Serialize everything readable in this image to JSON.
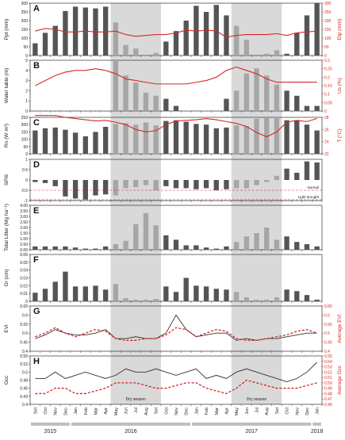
{
  "chart_data": {
    "type": "bar",
    "months": [
      "Set",
      "Oct",
      "Nov",
      "Dec",
      "Jan",
      "Feb",
      "Mar",
      "Apr",
      "May",
      "Jun",
      "Jul",
      "Aug",
      "Set",
      "Oct",
      "Nov",
      "Dec",
      "Jan",
      "Feb",
      "Mar",
      "Apr",
      "May",
      "Jun",
      "Jul",
      "Aug",
      "Set",
      "Oct",
      "Nov",
      "Dec",
      "Jan"
    ],
    "years": [
      {
        "label": "2015",
        "start": 0,
        "end": 3
      },
      {
        "label": "2016",
        "start": 4,
        "end": 15
      },
      {
        "label": "2017",
        "start": 16,
        "end": 27
      },
      {
        "label": "2018",
        "start": 28,
        "end": 28
      }
    ],
    "dry_seasons": [
      {
        "label": "Dry season",
        "start": 8,
        "end": 12
      },
      {
        "label": "Dry season",
        "start": 20,
        "end": 24
      }
    ],
    "colors": {
      "bar": "#555555",
      "bar_light": "#a6a6a6",
      "line": "#d62728",
      "shade": "#d9d9d9",
      "axis_right": "#d62728"
    },
    "panels": [
      {
        "letter": "A",
        "type": "bar+line",
        "ylabel": "Ppt (mm)",
        "ylim": [
          0,
          300
        ],
        "yticks": [
          "0",
          "50",
          "100",
          "150",
          "200",
          "250",
          "300"
        ],
        "y2label": "Etp (mm)",
        "y2lim": [
          0,
          300
        ],
        "y2ticks": [
          "0",
          "50",
          "100",
          "150",
          "200",
          "250",
          "300"
        ],
        "values": [
          70,
          130,
          170,
          255,
          280,
          275,
          270,
          280,
          190,
          60,
          40,
          5,
          15,
          80,
          140,
          200,
          285,
          250,
          290,
          230,
          170,
          90,
          5,
          10,
          30,
          10,
          130,
          230,
          300
        ],
        "line": [
          140,
          155,
          150,
          135,
          135,
          140,
          135,
          135,
          140,
          120,
          110,
          115,
          120,
          120,
          130,
          145,
          140,
          145,
          140,
          105,
          115,
          120,
          120,
          120,
          125,
          115,
          130,
          135,
          140
        ]
      },
      {
        "letter": "B",
        "type": "bar+line",
        "ylabel": "Water table (m)",
        "ylim": [
          0,
          5
        ],
        "yticks": [
          "0",
          "1",
          "2",
          "3",
          "4",
          "5"
        ],
        "y2label": "Us (%)",
        "y2lim": [
          0,
          0.3
        ],
        "y2ticks": [
          "0",
          "0.05",
          "0.1",
          "0.15",
          "0.2",
          "0.25",
          "0.3"
        ],
        "values": [
          0,
          0,
          0,
          0,
          0,
          0,
          0,
          0,
          5.0,
          3.5,
          2.8,
          1.8,
          1.5,
          1.2,
          0.5,
          0,
          0,
          0,
          0,
          1.2,
          2.0,
          3.7,
          4.2,
          3.5,
          2.6,
          2.0,
          1.5,
          0.5,
          0.5
        ],
        "line": [
          0.15,
          0.18,
          0.21,
          0.23,
          0.24,
          0.24,
          0.25,
          0.24,
          0.22,
          0.19,
          0.18,
          0.17,
          0.16,
          0.16,
          0.16,
          0.16,
          0.17,
          0.18,
          0.2,
          0.24,
          0.26,
          0.24,
          0.22,
          0.19,
          0.17,
          0.17,
          0.17,
          0.17,
          0.17
        ]
      },
      {
        "letter": "C",
        "type": "bar+line",
        "ylabel": "Rn (W m²)",
        "ylim": [
          0,
          250
        ],
        "yticks": [
          "0",
          "50",
          "100",
          "150",
          "200",
          "250"
        ],
        "y2label": "T (°C)",
        "y2lim": [
          22,
          28
        ],
        "y2ticks": [
          "22",
          "24",
          "26",
          "28"
        ],
        "values": [
          160,
          175,
          180,
          165,
          145,
          120,
          150,
          185,
          205,
          210,
          200,
          215,
          195,
          225,
          230,
          220,
          205,
          200,
          175,
          180,
          195,
          190,
          240,
          245,
          250,
          230,
          230,
          200,
          160
        ],
        "line": [
          28.3,
          28.3,
          28.3,
          28.0,
          27.8,
          27.6,
          27.4,
          27.5,
          27.2,
          26.8,
          26.0,
          25.6,
          25.8,
          26.8,
          27.4,
          27.5,
          27.6,
          27.8,
          27.6,
          27.3,
          27.0,
          26.5,
          25.5,
          24.8,
          25.6,
          27.2,
          27.5,
          27.3,
          27.8
        ]
      },
      {
        "letter": "D",
        "type": "bar",
        "ylabel": "SPI6",
        "ylim": [
          -1,
          1
        ],
        "yticks": [
          "-1",
          "-0.5",
          "0",
          "0.5",
          "1"
        ],
        "values": [
          -0.1,
          -0.15,
          -0.3,
          -0.8,
          -0.9,
          -0.95,
          -0.75,
          -0.7,
          -0.75,
          -0.4,
          -0.35,
          -0.25,
          -0.5,
          -0.3,
          -0.4,
          -0.4,
          -0.45,
          -0.4,
          -0.5,
          -0.45,
          -0.4,
          -0.4,
          -0.25,
          -0.1,
          0.2,
          0.55,
          0.35,
          0.9,
          0.85
        ],
        "ref_lines": [
          {
            "label": "Normal",
            "y": -0.5
          },
          {
            "label": "Light drought",
            "y": -1.0
          }
        ]
      },
      {
        "letter": "E",
        "type": "bar",
        "ylabel": "Total Litter (Mg ha⁻¹)",
        "ylim": [
          0,
          4
        ],
        "yticks": [
          "0.00",
          "0.50",
          "1.00",
          "1.50",
          "2.00",
          "2.50",
          "3.00",
          "3.50",
          "4.00"
        ],
        "values": [
          0.3,
          0.3,
          0.3,
          0.3,
          0.2,
          0.1,
          0.1,
          0.3,
          0.5,
          0.8,
          2.3,
          3.3,
          2.2,
          1.3,
          0.9,
          0.4,
          0.4,
          0.2,
          0.1,
          0.3,
          0.7,
          1.2,
          1.5,
          2.0,
          0.9,
          1.2,
          0.7,
          0.5,
          0.3
        ]
      },
      {
        "letter": "F",
        "type": "bar",
        "ylabel": "Gr (cm)",
        "ylim": [
          0,
          0.06
        ],
        "yticks": [
          "0",
          "0.01",
          "0.02",
          "0.03",
          "0.04",
          "0.05",
          "0.06"
        ],
        "values": [
          0.011,
          0.016,
          0.025,
          0.038,
          0.019,
          0.019,
          0.02,
          0.015,
          0.022,
          0.004,
          0.002,
          0.002,
          0.003,
          0.019,
          0.012,
          0.03,
          0.02,
          0.019,
          0.016,
          0.015,
          0.012,
          0.005,
          0.002,
          0.002,
          0.005,
          0.015,
          0.013,
          0.008,
          0.002
        ]
      },
      {
        "letter": "G",
        "type": "line",
        "ylabel": "EVI",
        "ylim": [
          0.4,
          0.65
        ],
        "yticks": [
          "0.4",
          "0.45",
          "0.5",
          "0.55",
          "0.6",
          "0.65"
        ],
        "y2label": "Average EVI",
        "y2lim": [
          0.4,
          0.65
        ],
        "y2ticks": [
          "0.4",
          "0.45",
          "0.5",
          "0.55",
          "0.6",
          "0.65"
        ],
        "series": [
          {
            "style": "solid",
            "color": "#333333",
            "values": [
              0.47,
              0.49,
              0.52,
              0.5,
              0.49,
              0.49,
              0.5,
              0.52,
              0.47,
              0.47,
              0.48,
              0.47,
              0.47,
              0.5,
              0.6,
              0.52,
              0.48,
              0.49,
              0.5,
              0.5,
              0.46,
              0.47,
              0.46,
              0.47,
              0.47,
              0.48,
              0.49,
              0.5,
              0.5
            ]
          },
          {
            "style": "dashed",
            "color": "#d62728",
            "values": [
              0.48,
              0.5,
              0.53,
              0.5,
              0.48,
              0.5,
              0.52,
              0.51,
              0.47,
              0.46,
              0.46,
              0.47,
              0.47,
              0.49,
              0.53,
              0.52,
              0.48,
              0.5,
              0.52,
              0.51,
              0.47,
              0.46,
              0.46,
              0.47,
              0.48,
              0.49,
              0.51,
              0.52,
              0.5
            ]
          }
        ]
      },
      {
        "letter": "H",
        "type": "line",
        "ylabel": "Gcc",
        "ylim": [
          0.4,
          0.55
        ],
        "yticks": [
          "0.4",
          "0.43",
          "0.45",
          "0.48",
          "0.5",
          "0.52",
          "0.55"
        ],
        "y2label": "Average Gcc",
        "y2lim": [
          0.46,
          0.55
        ],
        "y2ticks": [
          "0.46",
          "0.47",
          "0.48",
          "0.49",
          "0.50",
          "0.51",
          "0.52",
          "0.53",
          "0.54",
          "0.55"
        ],
        "series": [
          {
            "style": "solid",
            "color": "#333333",
            "values": [
              0.48,
              0.48,
              0.5,
              0.48,
              0.49,
              0.5,
              0.49,
              0.48,
              0.49,
              0.51,
              0.5,
              0.5,
              0.51,
              0.5,
              0.49,
              0.5,
              0.51,
              0.48,
              0.49,
              0.48,
              0.5,
              0.51,
              0.5,
              0.49,
              0.48,
              0.47,
              0.48,
              0.5,
              0.53
            ]
          },
          {
            "style": "dashed",
            "color": "#d62728",
            "values": [
              0.48,
              0.48,
              0.49,
              0.49,
              0.48,
              0.48,
              0.485,
              0.49,
              0.5,
              0.5,
              0.5,
              0.495,
              0.49,
              0.49,
              0.495,
              0.5,
              0.5,
              0.49,
              0.485,
              0.48,
              0.49,
              0.505,
              0.5,
              0.495,
              0.49,
              0.49,
              0.49,
              0.495,
              0.5
            ]
          }
        ]
      }
    ]
  }
}
